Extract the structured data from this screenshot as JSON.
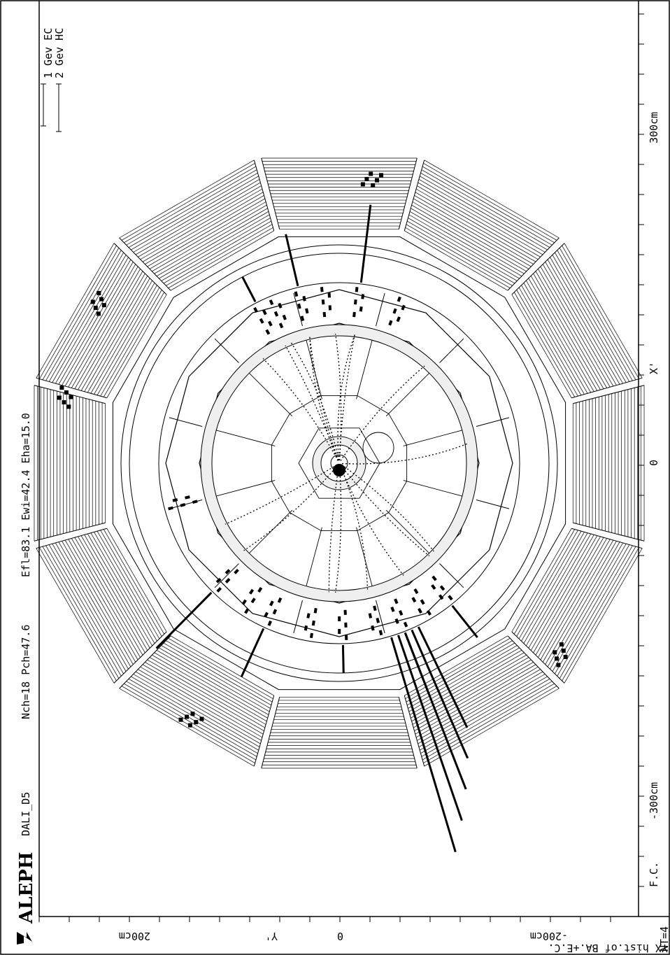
{
  "header": {
    "experiment": "ALEPH",
    "program": "DALI_D5",
    "stats": "Nch=18 Pch=47.6",
    "energies": "Efl=83.1   Ewi=42.4 Eha=15.0"
  },
  "legend": {
    "ec": "1 Gev EC",
    "hc": "2 Gev HC"
  },
  "right_axis": {
    "label_300": "300cm",
    "label_x": "X'",
    "label_0": "0",
    "label_m300": "-300cm",
    "corner": "F.C.",
    "nt": "NT=4"
  },
  "bottom_axis": {
    "label_200": "200cm",
    "label_y": "Y'",
    "label_0": "0",
    "label_m200": "-200cm",
    "caption": "YX hist.of BA.+E.C."
  },
  "colors": {
    "ink": "#000000",
    "paper": "#ffffff",
    "band": "#efefef"
  },
  "icons": {
    "logo": "aleph-logo-icon"
  }
}
